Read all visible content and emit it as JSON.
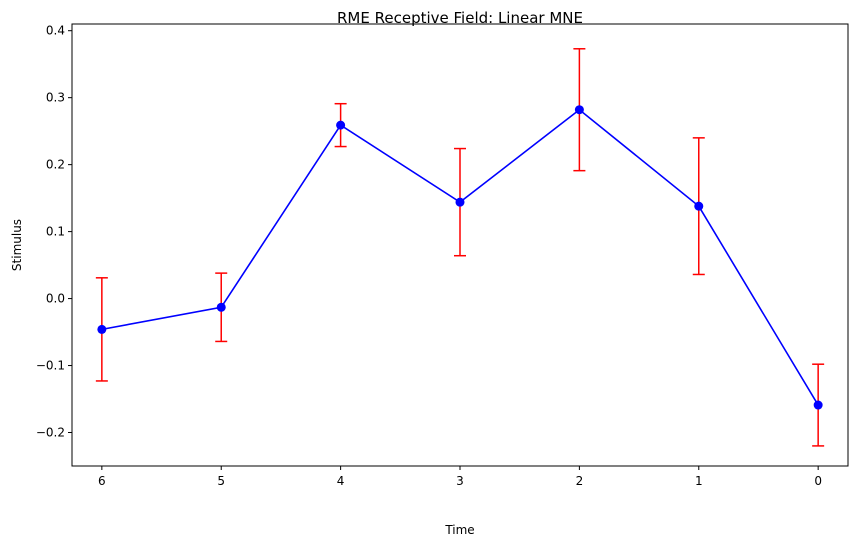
{
  "chart_data": {
    "type": "line",
    "title": "RME Receptive Field: Linear MNE",
    "xlabel": "Time",
    "ylabel": "Stimulus",
    "x_reversed": true,
    "xlim": [
      6.25,
      -0.25
    ],
    "ylim": [
      -0.25,
      0.41
    ],
    "x_ticks": [
      6,
      5,
      4,
      3,
      2,
      1,
      0
    ],
    "x_tick_labels": [
      "6",
      "5",
      "4",
      "3",
      "2",
      "1",
      "0"
    ],
    "y_ticks": [
      -0.2,
      -0.1,
      0.0,
      0.1,
      0.2,
      0.3,
      0.4
    ],
    "y_tick_labels": [
      "−0.2",
      "−0.1",
      "0.0",
      "0.1",
      "0.2",
      "0.3",
      "0.4"
    ],
    "grid": false,
    "legend": "none",
    "series": [
      {
        "x": [
          6,
          5,
          4,
          3,
          2,
          1,
          0
        ],
        "y": [
          -0.046,
          -0.013,
          0.259,
          0.144,
          0.282,
          0.138,
          -0.159
        ],
        "error": [
          0.077,
          0.051,
          0.032,
          0.08,
          0.091,
          0.102,
          0.061
        ],
        "line_color": "#0000ff",
        "marker": "circle",
        "error_color": "#ff0000"
      }
    ]
  }
}
